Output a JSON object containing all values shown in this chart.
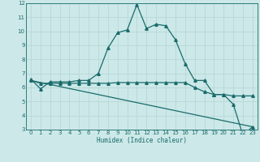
{
  "xlabel": "Humidex (Indice chaleur)",
  "xlim": [
    -0.5,
    23.5
  ],
  "ylim": [
    3,
    12
  ],
  "yticks": [
    3,
    4,
    5,
    6,
    7,
    8,
    9,
    10,
    11,
    12
  ],
  "xticks": [
    0,
    1,
    2,
    3,
    4,
    5,
    6,
    7,
    8,
    9,
    10,
    11,
    12,
    13,
    14,
    15,
    16,
    17,
    18,
    19,
    20,
    21,
    22,
    23
  ],
  "bg_color": "#cce8e8",
  "plot_bg_color": "#cce8e8",
  "line_color": "#1a6b6b",
  "grid_color": "#b8d8d8",
  "line1_x": [
    0,
    1,
    2,
    3,
    4,
    5,
    6,
    7,
    8,
    9,
    10,
    11,
    12,
    13,
    14,
    15,
    16,
    17,
    18,
    19,
    20,
    21,
    22,
    23
  ],
  "line1_y": [
    6.6,
    5.9,
    6.4,
    6.4,
    6.4,
    6.5,
    6.5,
    7.0,
    8.8,
    9.9,
    10.1,
    11.9,
    10.2,
    10.5,
    10.4,
    9.4,
    7.7,
    6.5,
    6.5,
    5.5,
    5.5,
    4.8,
    2.6,
    3.2
  ],
  "line2_x": [
    0,
    1,
    2,
    3,
    4,
    5,
    6,
    7,
    8,
    9,
    10,
    11,
    12,
    13,
    14,
    15,
    16,
    17,
    18,
    19,
    20,
    21,
    22,
    23
  ],
  "line2_y": [
    6.5,
    6.3,
    6.3,
    6.3,
    6.3,
    6.3,
    6.3,
    6.3,
    6.3,
    6.35,
    6.35,
    6.35,
    6.35,
    6.35,
    6.35,
    6.35,
    6.35,
    6.0,
    5.7,
    5.5,
    5.5,
    5.4,
    5.4,
    5.4
  ],
  "line3_x": [
    0,
    23
  ],
  "line3_y": [
    6.5,
    3.2
  ]
}
